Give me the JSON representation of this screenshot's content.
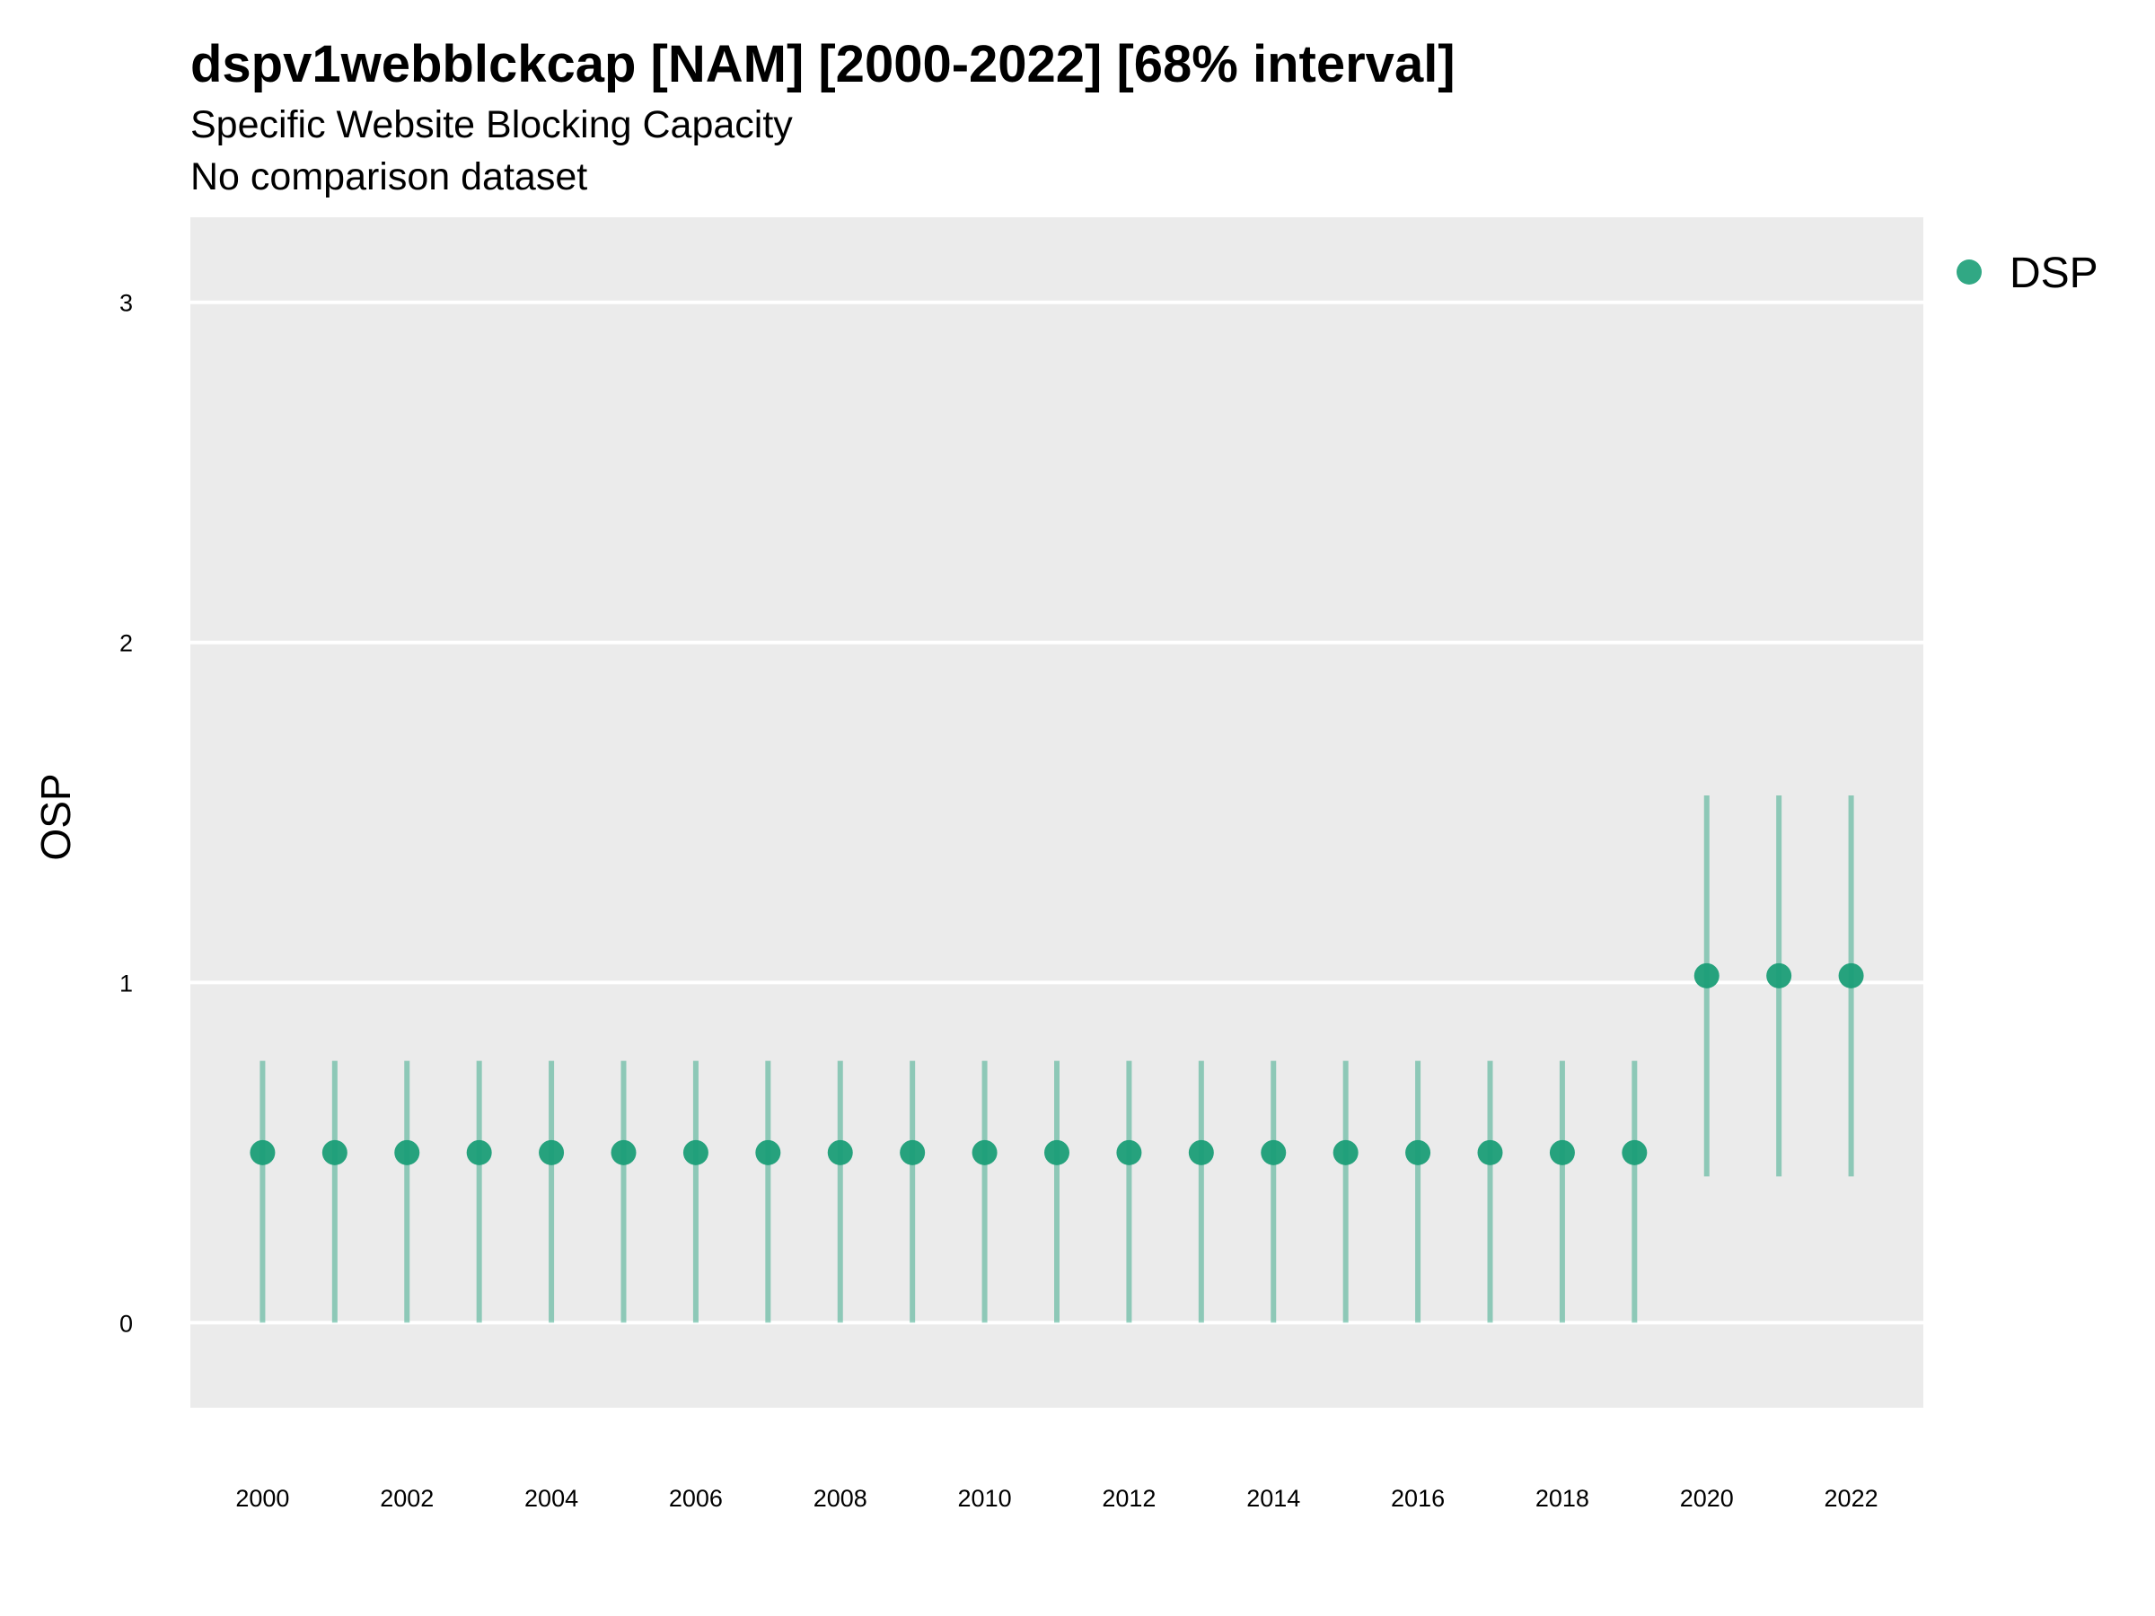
{
  "title": "dspv1webblckcap [NAM] [2000-2022] [68% interval]",
  "subtitle": "Specific Website Blocking Capacity",
  "caption": "No comparison dataset",
  "colors": {
    "panel_background": "#ebebeb",
    "gridline": "#ffffff",
    "point": "#1b9e77",
    "interval": "#1b9e77"
  },
  "chart_data": {
    "type": "scatter",
    "title": "dspv1webblckcap [NAM] [2000-2022] [68% interval]",
    "subtitle": "Specific Website Blocking Capacity",
    "xlabel": "",
    "ylabel": "OSP",
    "xlim": [
      1999.0,
      2023.0
    ],
    "ylim": [
      -0.25,
      3.25
    ],
    "x_ticks": [
      "2000",
      "2002",
      "2004",
      "2006",
      "2008",
      "2010",
      "2012",
      "2014",
      "2016",
      "2018",
      "2020",
      "2022"
    ],
    "y_ticks": [
      "0",
      "1",
      "2",
      "3"
    ],
    "grid": true,
    "legend_position": "right",
    "series": [
      {
        "name": "DSP",
        "x": [
          2000,
          2001,
          2002,
          2003,
          2004,
          2005,
          2006,
          2007,
          2008,
          2009,
          2010,
          2011,
          2012,
          2013,
          2014,
          2015,
          2016,
          2017,
          2018,
          2019,
          2020,
          2021,
          2022
        ],
        "y": [
          0.5,
          0.5,
          0.5,
          0.5,
          0.5,
          0.5,
          0.5,
          0.5,
          0.5,
          0.5,
          0.5,
          0.5,
          0.5,
          0.5,
          0.5,
          0.5,
          0.5,
          0.5,
          0.5,
          0.5,
          1.02,
          1.02,
          1.02
        ],
        "lower": [
          0.0,
          0.0,
          0.0,
          0.0,
          0.0,
          0.0,
          0.0,
          0.0,
          0.0,
          0.0,
          0.0,
          0.0,
          0.0,
          0.0,
          0.0,
          0.0,
          0.0,
          0.0,
          0.0,
          0.0,
          0.43,
          0.43,
          0.43
        ],
        "upper": [
          0.77,
          0.77,
          0.77,
          0.77,
          0.77,
          0.77,
          0.77,
          0.77,
          0.77,
          0.77,
          0.77,
          0.77,
          0.77,
          0.77,
          0.77,
          0.77,
          0.77,
          0.77,
          0.77,
          0.77,
          1.55,
          1.55,
          1.55
        ]
      }
    ]
  }
}
